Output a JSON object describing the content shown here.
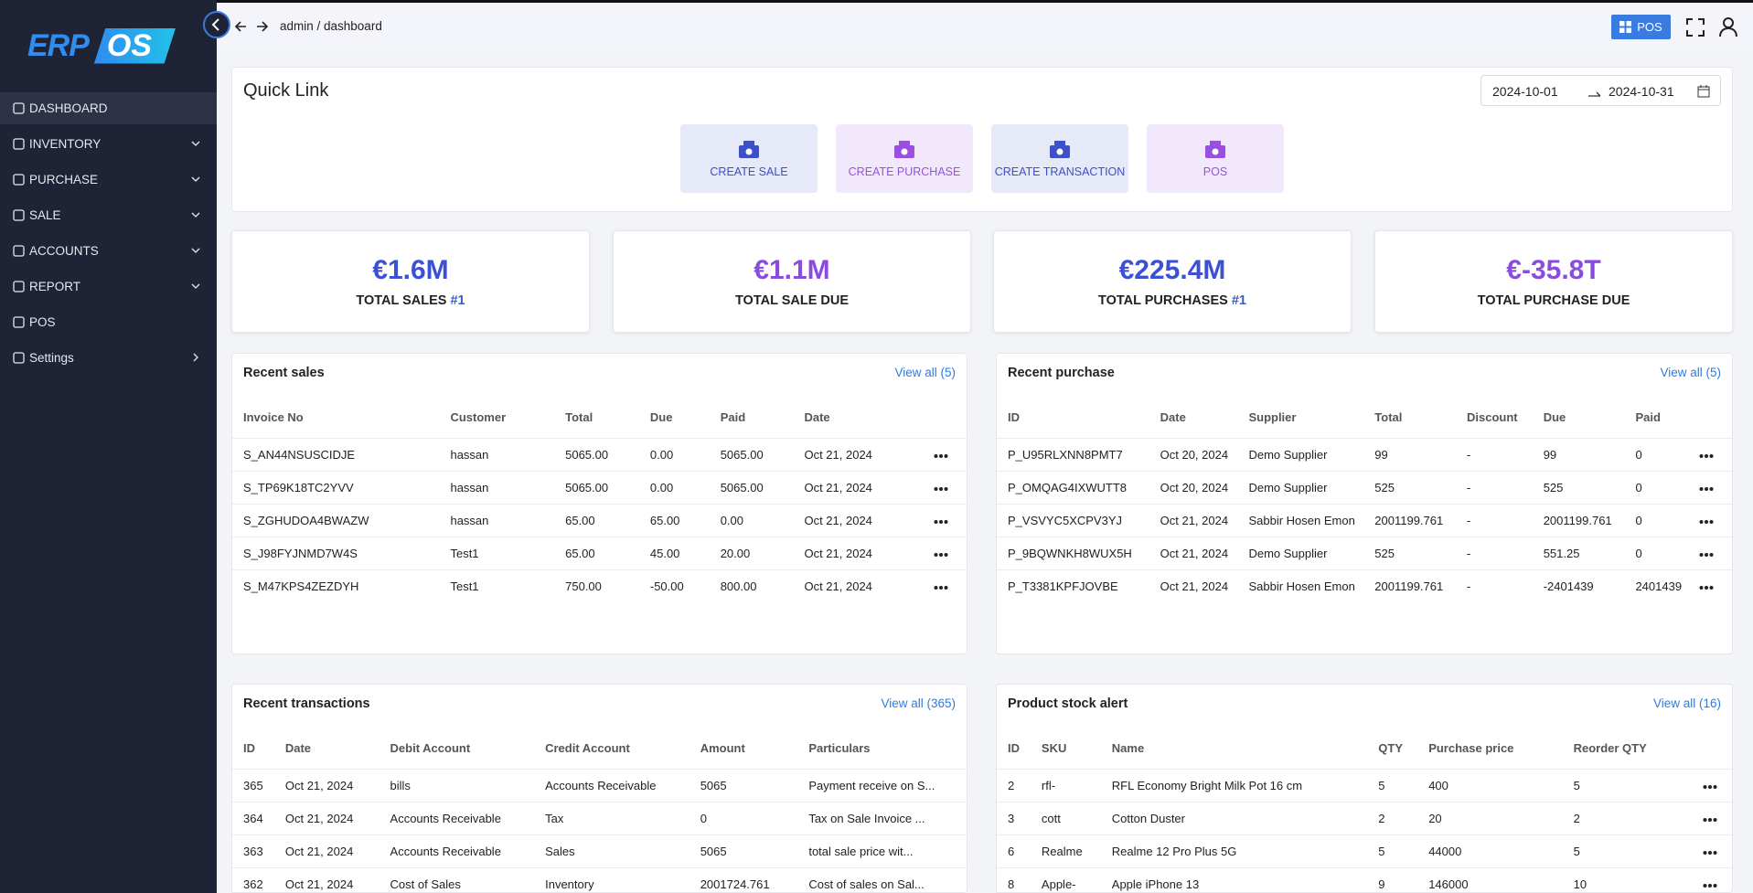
{
  "sidebar": {
    "logo": {
      "left": "ERP",
      "right": "OS"
    },
    "menu": [
      {
        "label": "DASHBOARD",
        "active": true
      },
      {
        "label": "INVENTORY",
        "submenu": "down"
      },
      {
        "label": "PURCHASE",
        "submenu": "down"
      },
      {
        "label": "SALE",
        "submenu": "down"
      },
      {
        "label": "ACCOUNTS",
        "submenu": "down"
      },
      {
        "label": "REPORT",
        "submenu": "down"
      },
      {
        "label": "POS"
      },
      {
        "label": "Settings",
        "submenu": "right"
      }
    ]
  },
  "topbar": {
    "breadcrumb": "admin / dashboard",
    "pos_button": "POS"
  },
  "quick_link": {
    "title": "Quick Link",
    "date_start": "2024-10-01",
    "date_end": "2024-10-31",
    "links": [
      {
        "label": "CREATE SALE",
        "tone": "blue"
      },
      {
        "label": "CREATE PURCHASE",
        "tone": "purple"
      },
      {
        "label": "CREATE TRANSACTION",
        "tone": "blue"
      },
      {
        "label": "POS",
        "tone": "purple"
      }
    ]
  },
  "stats": [
    {
      "value": "€1.6M",
      "label": "TOTAL SALES",
      "badge": "#1",
      "tone": "blue"
    },
    {
      "value": "€1.1M",
      "label": "TOTAL SALE DUE",
      "tone": "purple"
    },
    {
      "value": "€225.4M",
      "label": "TOTAL PURCHASES",
      "badge": "#1",
      "tone": "blue"
    },
    {
      "value": "€-35.8T",
      "label": "TOTAL PURCHASE DUE",
      "tone": "purple"
    }
  ],
  "recent_sales": {
    "title": "Recent sales",
    "view_all": "View all (5)",
    "columns": [
      "Invoice No",
      "Customer",
      "Total",
      "Due",
      "Paid",
      "Date"
    ],
    "rows": [
      [
        "S_AN44NSUSCIDJE",
        "hassan",
        "5065.00",
        "0.00",
        "5065.00",
        "Oct 21, 2024"
      ],
      [
        "S_TP69K18TC2YVV",
        "hassan",
        "5065.00",
        "0.00",
        "5065.00",
        "Oct 21, 2024"
      ],
      [
        "S_ZGHUDOA4BWAZW",
        "hassan",
        "65.00",
        "65.00",
        "0.00",
        "Oct 21, 2024"
      ],
      [
        "S_J98FYJNMD7W4S",
        "Test1",
        "65.00",
        "45.00",
        "20.00",
        "Oct 21, 2024"
      ],
      [
        "S_M47KPS4ZEZDYH",
        "Test1",
        "750.00",
        "-50.00",
        "800.00",
        "Oct 21, 2024"
      ]
    ]
  },
  "recent_purchase": {
    "title": "Recent purchase",
    "view_all": "View all (5)",
    "columns": [
      "ID",
      "Date",
      "Supplier",
      "Total",
      "Discount",
      "Due",
      "Paid"
    ],
    "rows": [
      [
        "P_U95RLXNN8PMT7",
        "Oct 20, 2024",
        "Demo Supplier",
        "99",
        "-",
        "99",
        "0"
      ],
      [
        "P_OMQAG4IXWUTT8",
        "Oct 20, 2024",
        "Demo Supplier",
        "525",
        "-",
        "525",
        "0"
      ],
      [
        "P_VSVYC5XCPV3YJ",
        "Oct 21, 2024",
        "Sabbir Hosen Emon",
        "2001199.761",
        "-",
        "2001199.761",
        "0"
      ],
      [
        "P_9BQWNKH8WUX5H",
        "Oct 21, 2024",
        "Demo Supplier",
        "525",
        "-",
        "551.25",
        "0"
      ],
      [
        "P_T3381KPFJOVBE",
        "Oct 21, 2024",
        "Sabbir Hosen Emon",
        "2001199.761",
        "-",
        "-2401439",
        "2401439"
      ]
    ]
  },
  "recent_transactions": {
    "title": "Recent transactions",
    "view_all": "View all (365)",
    "columns": [
      "ID",
      "Date",
      "Debit Account",
      "Credit Account",
      "Amount",
      "Particulars"
    ],
    "rows": [
      [
        "365",
        "Oct 21, 2024",
        "bills",
        "Accounts Receivable",
        "5065",
        "Payment receive on S..."
      ],
      [
        "364",
        "Oct 21, 2024",
        "Accounts Receivable",
        "Tax",
        "0",
        "Tax on Sale Invoice ..."
      ],
      [
        "363",
        "Oct 21, 2024",
        "Accounts Receivable",
        "Sales",
        "5065",
        "total sale price wit..."
      ],
      [
        "362",
        "Oct 21, 2024",
        "Cost of Sales",
        "Inventory",
        "2001724.761",
        "Cost of sales on Sal..."
      ]
    ]
  },
  "stock_alert": {
    "title": "Product stock alert",
    "view_all": "View all (16)",
    "columns": [
      "ID",
      "SKU",
      "Name",
      "QTY",
      "Purchase price",
      "Reorder QTY"
    ],
    "rows": [
      [
        "2",
        "rfl-",
        "RFL Economy Bright Milk Pot 16 cm",
        "5",
        "400",
        "5"
      ],
      [
        "3",
        "cott",
        "Cotton Duster",
        "2",
        "20",
        "2"
      ],
      [
        "6",
        "Realme",
        "Realme 12 Pro Plus 5G",
        "5",
        "44000",
        "5"
      ],
      [
        "8",
        "Apple-",
        "Apple iPhone 13",
        "9",
        "146000",
        "10"
      ]
    ]
  }
}
